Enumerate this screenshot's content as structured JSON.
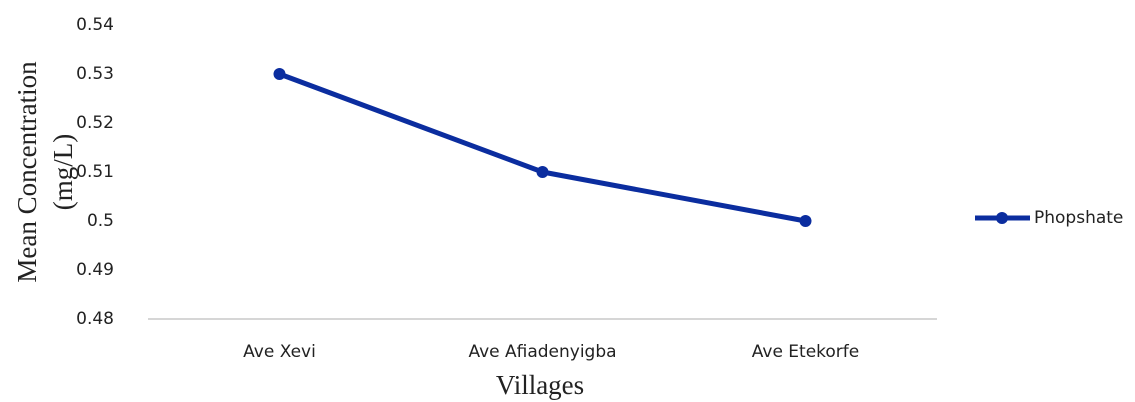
{
  "chart_data": {
    "type": "line",
    "y_label": [
      "Mean Concentration",
      "(mg/L)"
    ],
    "x_label": "Villages",
    "categories": [
      "Ave Xevi",
      "Ave Afiadenyigba",
      "Ave Etekorfe"
    ],
    "series": [
      {
        "name": "Phopshate",
        "color": "#0b2d9f",
        "values": [
          0.53,
          0.51,
          0.5
        ]
      }
    ],
    "ylim": [
      0.48,
      0.54
    ],
    "yticks": [
      0.48,
      0.49,
      0.5,
      0.51,
      0.52,
      0.53,
      0.54
    ],
    "grid": false,
    "legend": "right"
  }
}
